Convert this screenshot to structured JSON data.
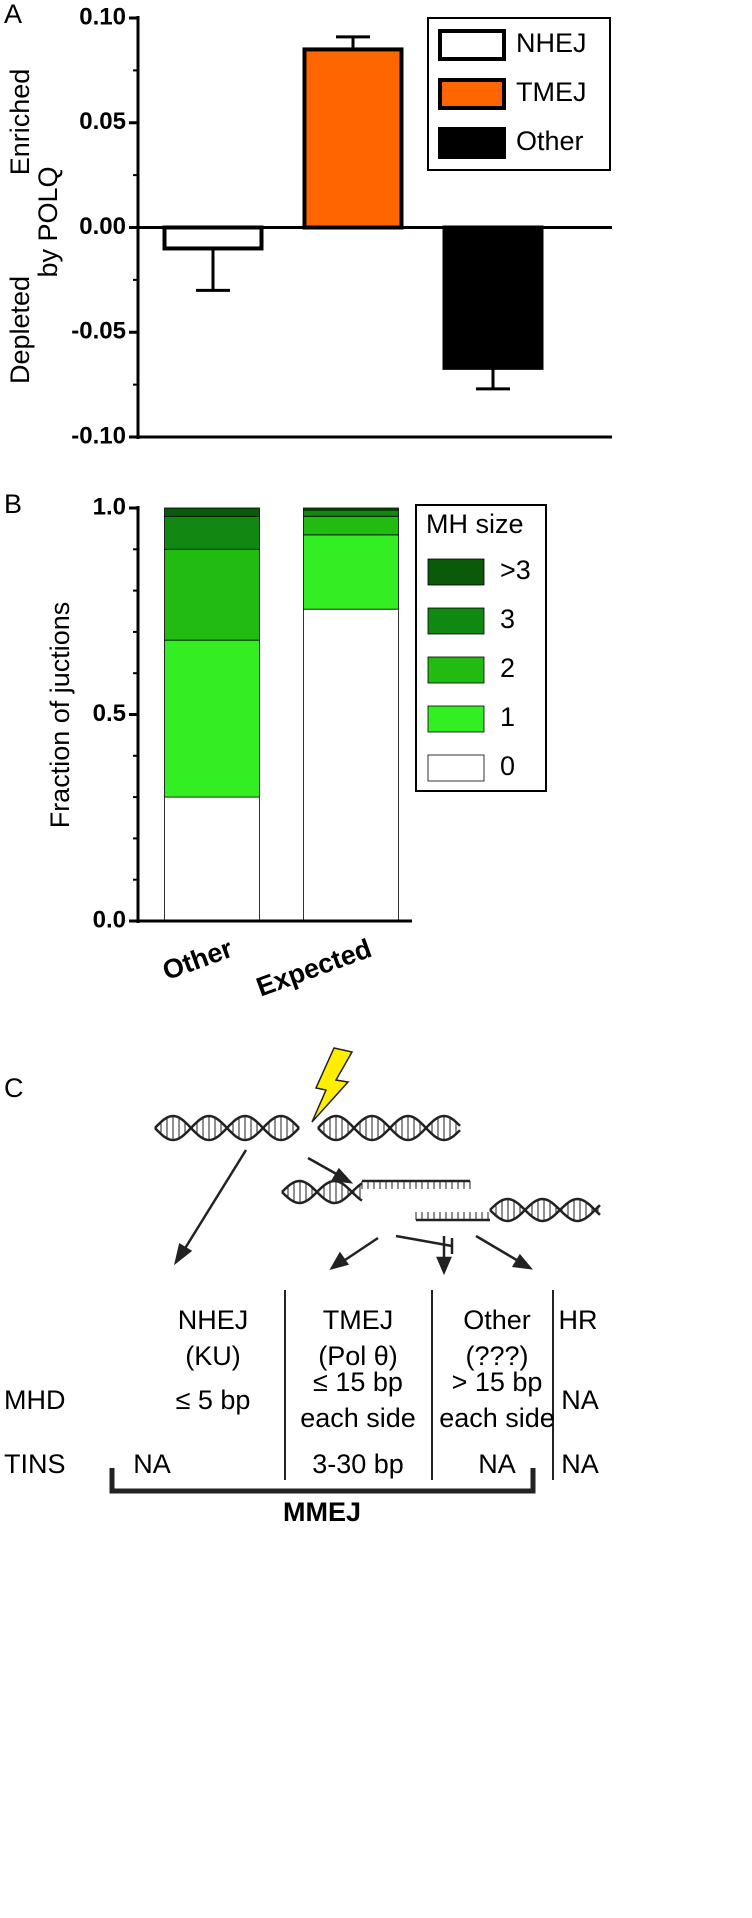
{
  "chart_data": [
    {
      "type": "bar",
      "label": "A",
      "ylabel_top": "Enriched",
      "ylabel_mid": "by POLQ",
      "ylabel_bottom": "Depleted",
      "ylim": [
        -0.1,
        0.1
      ],
      "yticks": [
        {
          "value": 0.1,
          "label": "0.10"
        },
        0.05,
        {
          "value": 0,
          "label": "0.00"
        },
        -0.05,
        {
          "value": -0.1,
          "label": "-0.10"
        }
      ],
      "legend": "upper right",
      "series": [
        {
          "name": "NHEJ",
          "color": "#ffffff",
          "values": [
            -0.01
          ],
          "errors": [
            0.02
          ]
        },
        {
          "name": "TMEJ",
          "color": "#ff6600",
          "values": [
            0.085
          ],
          "errors": [
            0.006
          ]
        },
        {
          "name": "Other",
          "color": "#000000",
          "values": [
            -0.067
          ],
          "errors": [
            0.01
          ]
        }
      ]
    },
    {
      "type": "stacked_bar",
      "label": "B",
      "ylabel": "Fraction of juctions",
      "categories": [
        "Other",
        "Expected"
      ],
      "ylim": [
        0,
        1
      ],
      "yticks": [
        {
          "value": 0,
          "label": "0.0"
        },
        0.5,
        {
          "value": 1,
          "label": "1.0"
        }
      ],
      "legend": "upper right",
      "legend_title": "MH size",
      "series": [
        {
          "name": "0",
          "color": "#ffffff",
          "values": [
            0.3,
            0.755
          ]
        },
        {
          "name": "1",
          "color": "#33ee22",
          "values": [
            0.38,
            0.18
          ]
        },
        {
          "name": "2",
          "color": "#22bb11",
          "values": [
            0.22,
            0.045
          ]
        },
        {
          "name": "3",
          "color": "#118811",
          "values": [
            0.08,
            0.015
          ]
        },
        {
          "name": ">3",
          "color": "#0a5a0a",
          "values": [
            0.02,
            0.005
          ]
        }
      ]
    }
  ],
  "diagram": {
    "label": "C",
    "columns": [
      [
        "NHEJ",
        "(KU)"
      ],
      [
        "TMEJ",
        "(Pol θ)"
      ],
      [
        "Other",
        "(???)"
      ],
      [
        "HR"
      ]
    ],
    "row_labels": [
      "MHD",
      "TINS"
    ],
    "mhd": [
      [
        "≤ 5 bp"
      ],
      [
        "≤ 15 bp",
        "each side"
      ],
      [
        "> 15 bp",
        "each side"
      ],
      [
        "NA"
      ]
    ],
    "tins": [
      "NA",
      "3-30 bp",
      "NA",
      "NA"
    ],
    "bracket": "MMEJ"
  }
}
